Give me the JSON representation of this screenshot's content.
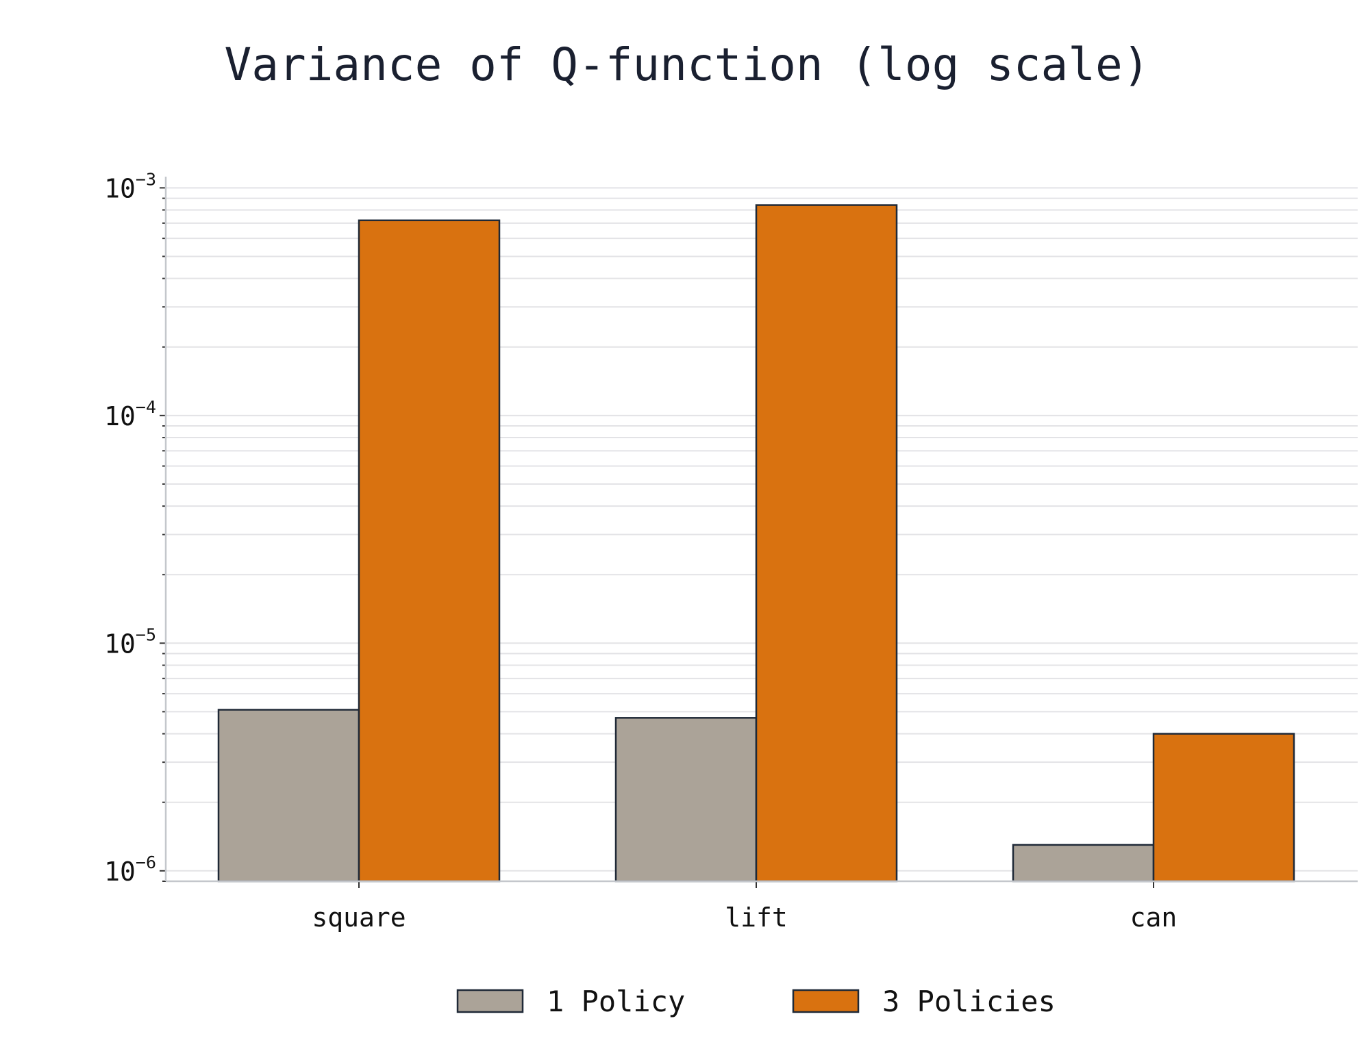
{
  "chart_data": {
    "type": "bar",
    "title": "Variance of Q-function (log scale)",
    "xlabel": "",
    "ylabel": "",
    "yscale": "log",
    "ylim": [
      9e-07,
      0.00112
    ],
    "yticks": [
      {
        "value": 1e-06,
        "base": "10",
        "exp": "−6"
      },
      {
        "value": 1e-05,
        "base": "10",
        "exp": "−5"
      },
      {
        "value": 0.0001,
        "base": "10",
        "exp": "−4"
      },
      {
        "value": 0.001,
        "base": "10",
        "exp": "−3"
      }
    ],
    "categories": [
      "square",
      "lift",
      "can"
    ],
    "series": [
      {
        "name": "1 Policy",
        "color": "#aba398",
        "values": [
          5.1e-06,
          4.7e-06,
          1.3e-06
        ]
      },
      {
        "name": "3 Policies",
        "color": "#d97210",
        "values": [
          0.00072,
          0.00084,
          4e-06
        ]
      }
    ],
    "grid": true,
    "grid_minor": true,
    "legend_position": "bottom-center"
  }
}
